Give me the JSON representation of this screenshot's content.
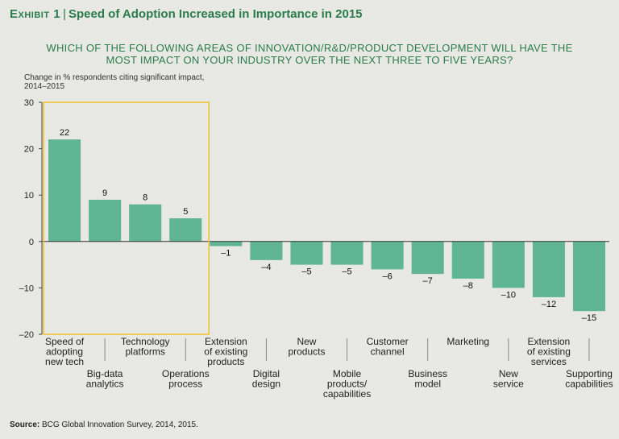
{
  "header": {
    "exhibit_label": "Exhibit 1",
    "separator": "|",
    "title": "Speed of Adoption Increased in Importance in 2015",
    "question_line1": "WHICH OF THE FOLLOWING AREAS OF INNOVATION/R&D/PRODUCT DEVELOPMENT WILL HAVE THE",
    "question_line2": "MOST IMPACT ON YOUR INDUSTRY OVER THE NEXT THREE TO FIVE YEARS?",
    "ylabel_line1": "Change in % respondents citing significant impact,",
    "ylabel_line2": "2014–2015"
  },
  "footer": {
    "source_label": "Source:",
    "source_text": "BCG Global Innovation Survey, 2014, 2015."
  },
  "colors": {
    "bar": "#5fb594",
    "highlight_box": "#f2c12e",
    "title": "#2a7d4a"
  },
  "chart_data": {
    "type": "bar",
    "title": "Speed of Adoption Increased in Importance in 2015",
    "ylabel": "Change in % respondents citing significant impact, 2014–2015",
    "xlabel": "",
    "ylim": [
      -20,
      30
    ],
    "yticks": [
      30,
      20,
      10,
      0,
      -10,
      -20
    ],
    "grid": false,
    "categories": [
      "Speed of adopting new tech",
      "Big-data analytics",
      "Technology platforms",
      "Operations process",
      "Extension of existing products",
      "Digital design",
      "New products",
      "Mobile products/ capabilities",
      "Customer channel",
      "Business model",
      "Marketing",
      "New service",
      "Extension of existing services",
      "Supporting capabilities"
    ],
    "category_lines": [
      [
        "Speed of",
        "adopting",
        "new tech"
      ],
      [
        "Big-data",
        "analytics"
      ],
      [
        "Technology",
        "platforms"
      ],
      [
        "Operations",
        "process"
      ],
      [
        "Extension",
        "of existing",
        "products"
      ],
      [
        "Digital",
        "design"
      ],
      [
        "New",
        "products"
      ],
      [
        "Mobile",
        "products/",
        "capabilities"
      ],
      [
        "Customer",
        "channel"
      ],
      [
        "Business",
        "model"
      ],
      [
        "Marketing"
      ],
      [
        "New",
        "service"
      ],
      [
        "Extension",
        "of existing",
        "services"
      ],
      [
        "Supporting",
        "capabilities"
      ]
    ],
    "values": [
      22,
      9,
      8,
      5,
      -1,
      -4,
      -5,
      -5,
      -6,
      -7,
      -8,
      -10,
      -12,
      -15
    ],
    "value_labels": [
      "22",
      "9",
      "8",
      "5",
      "–1",
      "–4",
      "–5",
      "–5",
      "–6",
      "–7",
      "–8",
      "–10",
      "–12",
      "–15"
    ],
    "highlighted_categories": [
      "Speed of adopting new tech",
      "Big-data analytics",
      "Technology platforms",
      "Operations process"
    ]
  }
}
